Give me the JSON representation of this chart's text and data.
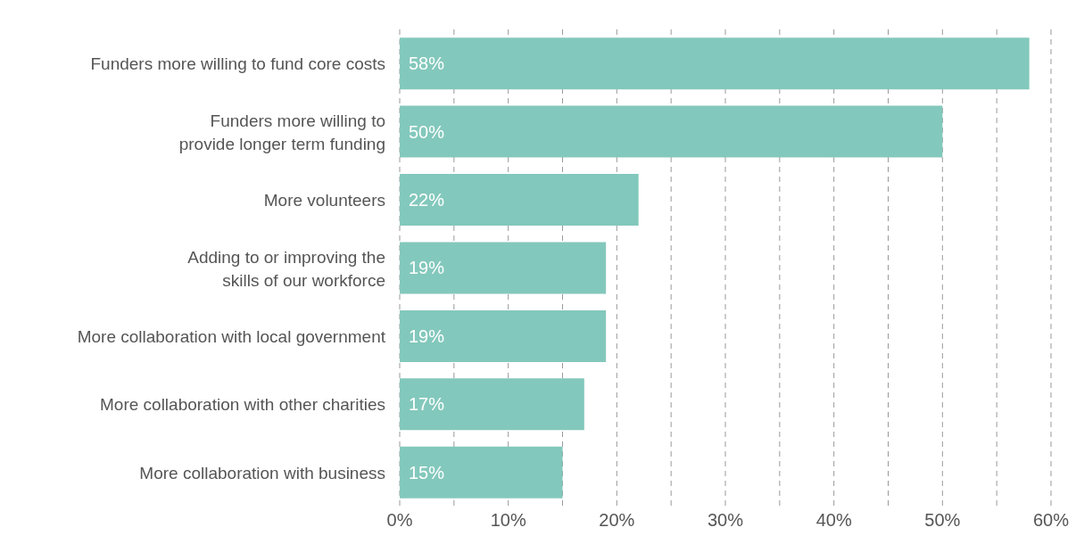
{
  "chart_data": {
    "type": "bar",
    "orientation": "horizontal",
    "categories": [
      "Funders more willing to fund core costs",
      "Funders more willing to provide longer term funding",
      "More volunteers",
      "Adding to or improving the skills of our workforce",
      "More collaboration with local government",
      "More collaboration with other charities",
      "More collaboration with business"
    ],
    "values": [
      58,
      50,
      22,
      19,
      19,
      17,
      15
    ],
    "value_labels": [
      "58%",
      "50%",
      "22%",
      "19%",
      "19%",
      "17%",
      "15%"
    ],
    "color": "#83c8bc",
    "xlim": [
      0,
      60
    ],
    "xticks": [
      {
        "value": 0,
        "label": "0%"
      },
      {
        "value": 5,
        "label": null
      },
      {
        "value": 10,
        "label": "10%"
      },
      {
        "value": 15,
        "label": null
      },
      {
        "value": 20,
        "label": "20%"
      },
      {
        "value": 25,
        "label": null
      },
      {
        "value": 30,
        "label": "30%"
      },
      {
        "value": 35,
        "label": null
      },
      {
        "value": 40,
        "label": "40%"
      },
      {
        "value": 45,
        "label": null
      },
      {
        "value": 50,
        "label": "50%"
      },
      {
        "value": 55,
        "label": null
      },
      {
        "value": 60,
        "label": "60%"
      }
    ],
    "grid": "x"
  }
}
